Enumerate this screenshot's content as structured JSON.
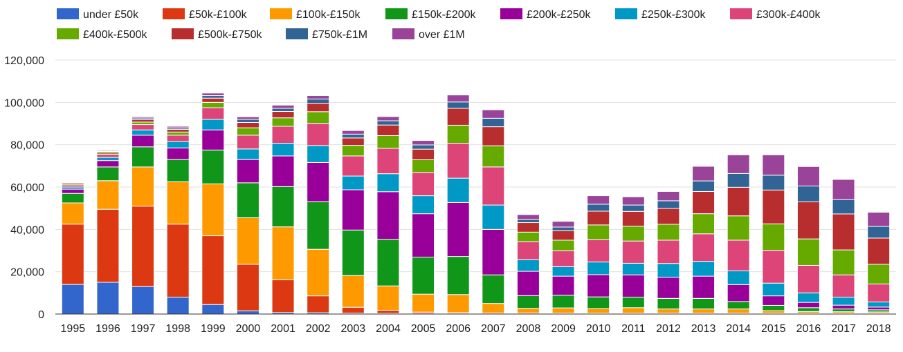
{
  "chart_data": {
    "type": "bar",
    "stacked": true,
    "categories": [
      "1995",
      "1996",
      "1997",
      "1998",
      "1999",
      "2000",
      "2001",
      "2002",
      "2003",
      "2004",
      "2005",
      "2006",
      "2007",
      "2008",
      "2009",
      "2010",
      "2011",
      "2012",
      "2013",
      "2014",
      "2015",
      "2016",
      "2017",
      "2018"
    ],
    "ylim": [
      0,
      120000
    ],
    "yticks": [
      0,
      20000,
      40000,
      60000,
      80000,
      100000,
      120000
    ],
    "ytick_labels": [
      "0",
      "20,000",
      "40,000",
      "60,000",
      "80,000",
      "100,000",
      "120,000"
    ],
    "grid": true,
    "legend_position": "top",
    "series": [
      {
        "name": "under £50k",
        "color": "#3366cc",
        "values": [
          14000,
          15000,
          13000,
          8000,
          4500,
          1500,
          700,
          600,
          400,
          300,
          200,
          200,
          100,
          100,
          100,
          100,
          100,
          100,
          100,
          100,
          100,
          100,
          100,
          100
        ]
      },
      {
        "name": "£50k-£100k",
        "color": "#dc3912",
        "values": [
          28500,
          34500,
          38000,
          34500,
          32500,
          22000,
          15500,
          8000,
          2800,
          1500,
          700,
          500,
          400,
          400,
          300,
          300,
          300,
          300,
          300,
          300,
          300,
          300,
          300,
          300
        ]
      },
      {
        "name": "£100k-£150k",
        "color": "#ff9900",
        "values": [
          10000,
          13500,
          18500,
          20000,
          24500,
          22000,
          25000,
          22000,
          15000,
          11500,
          8500,
          8500,
          4500,
          2200,
          2500,
          2200,
          2600,
          2000,
          2000,
          2000,
          1200,
          800,
          700,
          600
        ]
      },
      {
        "name": "£150k-£200k",
        "color": "#109618",
        "values": [
          4500,
          6500,
          9500,
          10500,
          16000,
          16500,
          19000,
          22500,
          21500,
          22000,
          17500,
          18000,
          13500,
          6000,
          6000,
          5500,
          5000,
          5000,
          5000,
          3500,
          2500,
          1800,
          1300,
          1000
        ]
      },
      {
        "name": "£200k-£250k",
        "color": "#990099",
        "values": [
          2000,
          3000,
          5500,
          5500,
          9500,
          11000,
          14500,
          18500,
          19000,
          22500,
          20500,
          25500,
          21500,
          11500,
          9000,
          10500,
          10500,
          10000,
          10500,
          8000,
          4500,
          2500,
          1800,
          1300
        ]
      },
      {
        "name": "£250k-£300k",
        "color": "#0099c6",
        "values": [
          1000,
          1500,
          2500,
          3000,
          5000,
          5000,
          6000,
          8000,
          6500,
          8500,
          8500,
          11500,
          11500,
          5500,
          4500,
          6000,
          5500,
          6500,
          7000,
          6500,
          6000,
          4500,
          3800,
          2400
        ]
      },
      {
        "name": "£300k-£400k",
        "color": "#dd4477",
        "values": [
          1000,
          1500,
          2500,
          3000,
          5500,
          6500,
          8000,
          10500,
          9500,
          12000,
          11000,
          16500,
          18000,
          8500,
          7500,
          10500,
          10500,
          11000,
          13000,
          14500,
          15500,
          13000,
          10500,
          8500
        ]
      },
      {
        "name": "£400k-£500k",
        "color": "#66aa00",
        "values": [
          600,
          700,
          1200,
          1500,
          2500,
          3500,
          4000,
          5500,
          5000,
          6000,
          6000,
          8500,
          10000,
          4500,
          5000,
          7000,
          7000,
          7500,
          9500,
          11500,
          12500,
          12500,
          11800,
          9300
        ]
      },
      {
        "name": "£500k-£750k",
        "color": "#b82e2e",
        "values": [
          500,
          600,
          1200,
          1300,
          2000,
          2500,
          3000,
          4000,
          3500,
          5000,
          5000,
          8000,
          9000,
          4500,
          4500,
          6500,
          7000,
          7500,
          10500,
          13500,
          16000,
          17500,
          17000,
          12400
        ]
      },
      {
        "name": "£750k-£1M",
        "color": "#316395",
        "values": [
          300,
          400,
          700,
          700,
          1200,
          1500,
          1500,
          2000,
          1800,
          2000,
          2000,
          3000,
          4000,
          1500,
          1700,
          3300,
          3000,
          3600,
          5000,
          6500,
          7000,
          7500,
          6800,
          5500
        ]
      },
      {
        "name": "over £1M",
        "color": "#994499",
        "values": [
          300,
          400,
          600,
          700,
          1200,
          1200,
          1500,
          1600,
          1700,
          2000,
          2100,
          3300,
          4000,
          2300,
          2700,
          4000,
          3900,
          4400,
          6900,
          8800,
          9600,
          9200,
          9500,
          6700
        ]
      }
    ]
  }
}
